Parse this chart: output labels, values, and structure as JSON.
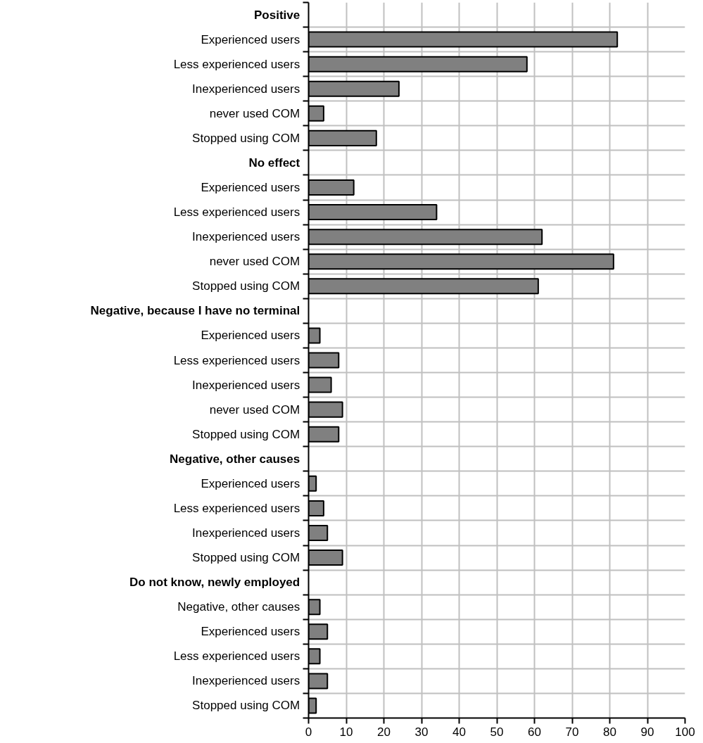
{
  "chart_data": {
    "type": "bar",
    "orientation": "horizontal",
    "categories": [
      "Positive",
      "Experienced users",
      "Less experienced users",
      "Inexperienced users",
      "never used COM",
      "Stopped using COM",
      "No effect",
      "Experienced users",
      "Less experienced users",
      "Inexperienced users",
      "never used COM",
      "Stopped using COM",
      "Negative, because I have no terminal",
      "Experienced users",
      "Less experienced users",
      "Inexperienced users",
      "never used COM",
      "Stopped using COM",
      "Negative, other causes",
      "Experienced users",
      "Less experienced users",
      "Inexperienced users",
      "Stopped using COM",
      "Do not know, newly employed",
      "Negative, other causes",
      "Experienced users",
      "Less experienced users",
      "Inexperienced users",
      "Stopped using COM"
    ],
    "values": [
      null,
      82,
      58,
      24,
      4,
      18,
      null,
      12,
      34,
      62,
      81,
      61,
      null,
      3,
      8,
      6,
      9,
      8,
      null,
      2,
      4,
      5,
      9,
      null,
      3,
      5,
      3,
      5,
      2
    ],
    "color": "#808080",
    "xlim": [
      0,
      100
    ],
    "xticks": [
      0,
      10,
      20,
      30,
      40,
      50,
      60,
      70,
      80,
      90,
      100
    ],
    "grid": true
  }
}
